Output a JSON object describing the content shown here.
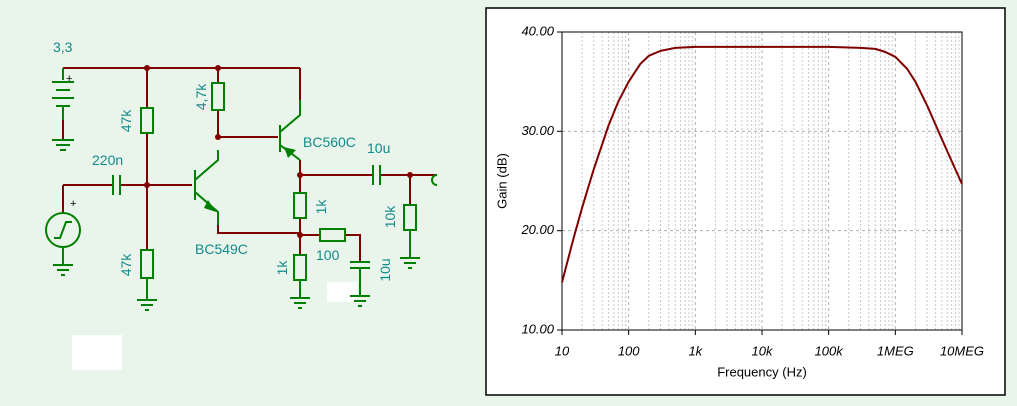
{
  "schematic": {
    "labels": {
      "supply": "3,3",
      "r_bias_top": "47k",
      "r_collector": "4,7k",
      "q_pnp": "BC560C",
      "c_out": "10u",
      "c_in": "220n",
      "r_load": "10k",
      "r_emitter": "1k",
      "r_series": "100",
      "r_bias_bottom": "47k",
      "q_npn": "BC549C",
      "r_emitter_low": "1k",
      "c_bypass": "10u"
    }
  },
  "chart_data": {
    "type": "line",
    "xlabel": "Frequency (Hz)",
    "ylabel": "Gain (dB)",
    "x": [
      10,
      15,
      20,
      30,
      50,
      70,
      100,
      150,
      200,
      300,
      500,
      1000,
      10000,
      100000,
      300000,
      500000,
      700000,
      1000000,
      1500000,
      2000000,
      3000000,
      5000000,
      7000000,
      10000000
    ],
    "values": [
      14.8,
      19.3,
      22.3,
      26.2,
      30.6,
      33.0,
      35.0,
      36.8,
      37.6,
      38.1,
      38.4,
      38.5,
      38.5,
      38.5,
      38.4,
      38.3,
      38.0,
      37.5,
      36.3,
      35.0,
      32.6,
      29.2,
      27.0,
      24.7
    ],
    "color": "#800000",
    "xscale": "log",
    "grid": true,
    "xlim": [
      10,
      10000000
    ],
    "xticks": [
      10,
      100,
      {
        "value": 1000,
        "label": "1k"
      },
      {
        "value": 10000,
        "label": "10k"
      },
      {
        "value": 100000,
        "label": "100k"
      },
      {
        "value": 1000000,
        "label": "1MEG"
      },
      {
        "value": 10000000,
        "label": "10MEG"
      }
    ],
    "ylim": [
      10,
      40
    ],
    "yticks": [
      {
        "value": 10,
        "label": "10.00"
      },
      {
        "value": 20,
        "label": "20.00"
      },
      {
        "value": 30,
        "label": "30.00"
      },
      {
        "value": 40,
        "label": "40.00"
      }
    ]
  }
}
